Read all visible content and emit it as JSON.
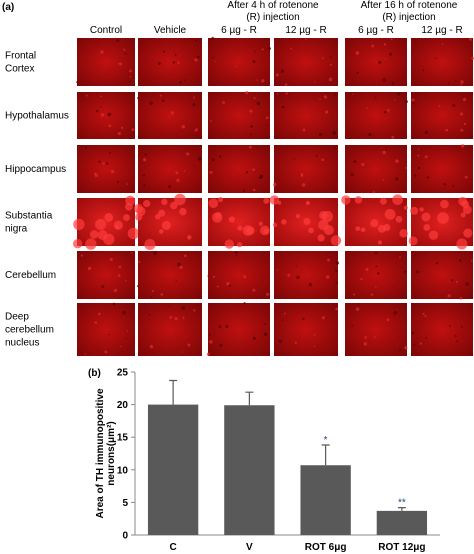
{
  "panel_a": {
    "label": "(a)",
    "columns": [
      "Control",
      "Vehicle",
      "6 µg - R",
      "12 µg - R",
      "6 µg - R",
      "12 µg - R"
    ],
    "groups": [
      [
        "After 4 h of rotenone",
        "(R) injection"
      ],
      [
        "After  16 h of rotenone",
        "(R) injection"
      ]
    ],
    "rows": [
      [
        "Frontal",
        "Cortex"
      ],
      [
        "Hypothalamus"
      ],
      [
        "Hippocampus"
      ],
      [
        "Substantia",
        "nigra"
      ],
      [
        "Cerebellum"
      ],
      [
        "Deep",
        "cerebellum",
        "nucleus"
      ]
    ]
  },
  "chart_data": {
    "type": "bar",
    "label": "(b)",
    "ylabel": [
      "Area of TH immunopositive",
      "neurons(μm²)"
    ],
    "categories": [
      "C",
      "V",
      "ROT 6μg",
      "ROT 12μg"
    ],
    "values": [
      20,
      19.9,
      10.7,
      3.7
    ],
    "errors": [
      3.7,
      2,
      3.1,
      0.5
    ],
    "value_annotations": [
      null,
      null,
      "*",
      "**"
    ],
    "color": "#595959",
    "ylim": [
      0,
      25
    ],
    "yticks": [
      0,
      5,
      10,
      15,
      20,
      25
    ]
  }
}
